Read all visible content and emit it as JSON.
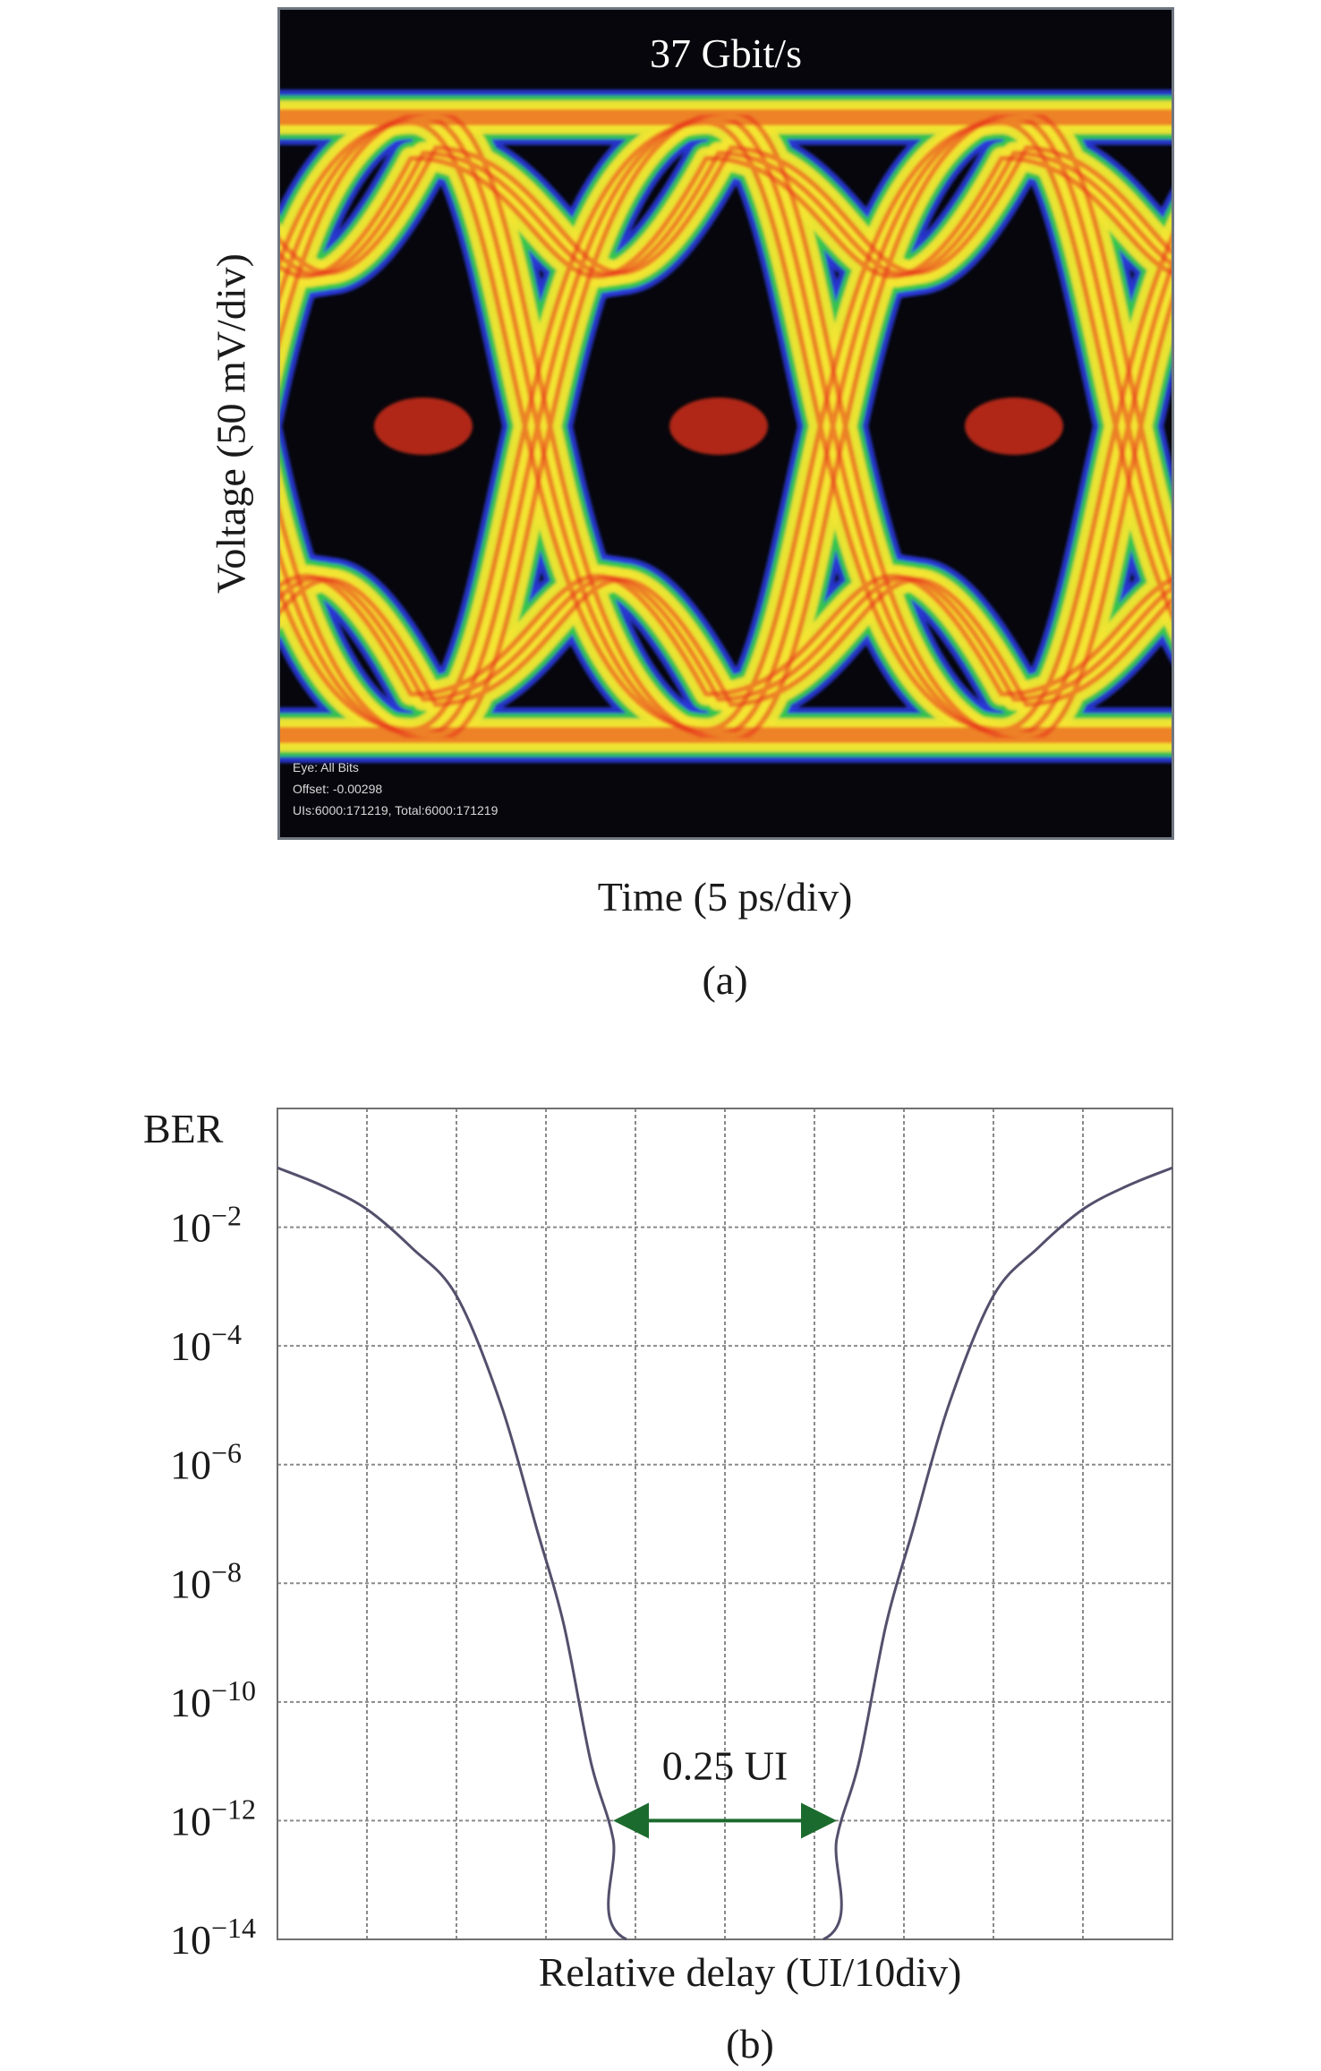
{
  "panel_a": {
    "title": "37 Gbit/s",
    "ylabel": "Voltage (50 mV/div)",
    "xlabel": "Time (5 ps/div)",
    "caption": "(a)",
    "info_lines": [
      "Eye: All Bits",
      "Offset: -0.00298",
      "UIs:6000:171219, Total:6000:171219"
    ],
    "colors": {
      "background": "#06060c",
      "low": "#2a39d8",
      "mid": "#36c84a",
      "high": "#f3e530",
      "peak": "#e8321e"
    }
  },
  "panel_b": {
    "caption": "(b)",
    "annotation": "0.25 UI"
  },
  "chart_data": [
    {
      "type": "heatmap",
      "title": "37 Gbit/s",
      "xlabel": "Time (5 ps/div)",
      "ylabel": "Voltage (50 mV/div)",
      "description_values": {
        "unit_intervals_shown": 2
      }
    },
    {
      "type": "line",
      "ylabel": "BER",
      "xlabel": "Relative delay (UI/10div)",
      "yscale": "log",
      "ytick_labels": [
        {
          "base": "10",
          "exp": "−2",
          "value": 0.01
        },
        {
          "base": "10",
          "exp": "−4",
          "value": 0.0001
        },
        {
          "base": "10",
          "exp": "−6",
          "value": 1e-06
        },
        {
          "base": "10",
          "exp": "−8",
          "value": 1e-08
        },
        {
          "base": "10",
          "exp": "−10",
          "value": 1e-10
        },
        {
          "base": "10",
          "exp": "−12",
          "value": 1e-12
        },
        {
          "base": "10",
          "exp": "−14",
          "value": 1e-14
        }
      ],
      "ylim": [
        1e-14,
        1
      ],
      "xlim": [
        0,
        1
      ],
      "grid": true,
      "series": [
        {
          "x": [
            0,
            0.05,
            0.1,
            0.15,
            0.2,
            0.25,
            0.29,
            0.32,
            0.35,
            0.375,
            0.39,
            0.61,
            0.625,
            0.65,
            0.68,
            0.71,
            0.75,
            0.8,
            0.85,
            0.9,
            0.95,
            1.0
          ],
          "y": [
            0.1,
            0.05,
            0.02,
            0.0045,
            0.0007,
            1e-05,
            8e-08,
            2e-09,
            1e-11,
            5e-13,
            1e-14,
            1e-14,
            5e-13,
            1e-11,
            2e-09,
            8e-08,
            1e-05,
            0.0007,
            0.0045,
            0.02,
            0.05,
            0.1
          ]
        }
      ],
      "annotations": [
        {
          "text": "0.25 UI",
          "x_start": 0.375,
          "x_end": 0.625,
          "y": 1e-12
        }
      ]
    }
  ]
}
